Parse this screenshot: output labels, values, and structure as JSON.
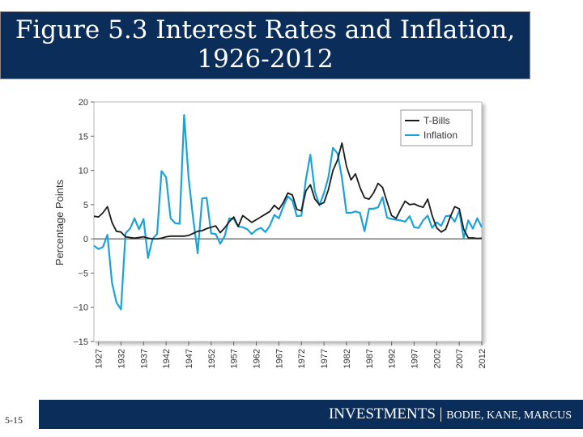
{
  "slide": {
    "title_line1": "Figure 5.3 Interest Rates and Inflation,",
    "title_line2": "1926-2012",
    "slide_number": "5-15",
    "footer_main": "INVESTMENTS | ",
    "footer_authors": "BODIE, KANE, MARCUS"
  },
  "chart_data": {
    "type": "line",
    "title": "Figure 5.3 Interest Rates and Inflation, 1926-2012",
    "xlabel": "",
    "ylabel": "Percentage Points",
    "xlim": [
      1926,
      2012
    ],
    "ylim": [
      -15,
      20
    ],
    "yticks": [
      20,
      15,
      10,
      5,
      0,
      -5,
      -10,
      -15
    ],
    "ytick_labels": [
      "20",
      "15",
      "10",
      "5",
      "0",
      "−5",
      "−10",
      "−15"
    ],
    "xticks": [
      1927,
      1932,
      1937,
      1942,
      1947,
      1952,
      1957,
      1962,
      1967,
      1972,
      1977,
      1982,
      1987,
      1992,
      1997,
      2002,
      2007,
      2012
    ],
    "legend_position": "top-right",
    "grid": false,
    "series": [
      {
        "name": "T-Bills",
        "color": "#1a1a1a",
        "x": [
          1926,
          1927,
          1928,
          1929,
          1930,
          1931,
          1932,
          1933,
          1934,
          1935,
          1936,
          1937,
          1938,
          1939,
          1940,
          1941,
          1942,
          1943,
          1944,
          1945,
          1946,
          1947,
          1948,
          1949,
          1950,
          1951,
          1952,
          1953,
          1954,
          1955,
          1956,
          1957,
          1958,
          1959,
          1960,
          1961,
          1962,
          1963,
          1964,
          1965,
          1966,
          1967,
          1968,
          1969,
          1970,
          1971,
          1972,
          1973,
          1974,
          1975,
          1976,
          1977,
          1978,
          1979,
          1980,
          1981,
          1982,
          1983,
          1984,
          1985,
          1986,
          1987,
          1988,
          1989,
          1990,
          1991,
          1992,
          1993,
          1994,
          1995,
          1996,
          1997,
          1998,
          1999,
          2000,
          2001,
          2002,
          2003,
          2004,
          2005,
          2006,
          2007,
          2008,
          2009,
          2010,
          2011,
          2012
        ],
        "y": [
          3.3,
          3.2,
          3.8,
          4.7,
          2.4,
          1.1,
          1.0,
          0.3,
          0.2,
          0.1,
          0.2,
          0.3,
          0.1,
          0.0,
          0.0,
          0.1,
          0.3,
          0.4,
          0.4,
          0.4,
          0.4,
          0.5,
          0.8,
          1.1,
          1.2,
          1.5,
          1.7,
          1.9,
          0.9,
          1.6,
          2.5,
          3.2,
          1.8,
          3.4,
          2.9,
          2.4,
          2.8,
          3.2,
          3.6,
          4.0,
          4.9,
          4.3,
          5.3,
          6.7,
          6.4,
          4.3,
          4.1,
          7.0,
          7.9,
          5.8,
          5.0,
          5.3,
          7.2,
          10.0,
          11.5,
          14.0,
          10.6,
          8.6,
          9.5,
          7.5,
          6.0,
          5.8,
          6.7,
          8.1,
          7.5,
          5.4,
          3.4,
          3.0,
          4.3,
          5.5,
          5.0,
          5.1,
          4.8,
          4.6,
          5.8,
          3.4,
          1.6,
          1.0,
          1.4,
          3.2,
          4.7,
          4.4,
          1.4,
          0.15,
          0.14,
          0.05,
          0.09
        ]
      },
      {
        "name": "Inflation",
        "color": "#1ba3d8",
        "x": [
          1926,
          1927,
          1928,
          1929,
          1930,
          1931,
          1932,
          1933,
          1934,
          1935,
          1936,
          1937,
          1938,
          1939,
          1940,
          1941,
          1942,
          1943,
          1944,
          1945,
          1946,
          1947,
          1948,
          1949,
          1950,
          1951,
          1952,
          1953,
          1954,
          1955,
          1956,
          1957,
          1958,
          1959,
          1960,
          1961,
          1962,
          1963,
          1964,
          1965,
          1966,
          1967,
          1968,
          1969,
          1970,
          1971,
          1972,
          1973,
          1974,
          1975,
          1976,
          1977,
          1978,
          1979,
          1980,
          1981,
          1982,
          1983,
          1984,
          1985,
          1986,
          1987,
          1988,
          1989,
          1990,
          1991,
          1992,
          1993,
          1994,
          1995,
          1996,
          1997,
          1998,
          1999,
          2000,
          2001,
          2002,
          2003,
          2004,
          2005,
          2006,
          2007,
          2008,
          2009,
          2010,
          2011,
          2012
        ],
        "y": [
          -1.0,
          -1.5,
          -1.2,
          0.6,
          -6.4,
          -9.3,
          -10.3,
          0.8,
          1.5,
          3.0,
          1.4,
          2.9,
          -2.8,
          0.0,
          0.7,
          9.9,
          9.0,
          3.0,
          2.3,
          2.2,
          18.1,
          8.8,
          3.0,
          -2.1,
          5.9,
          6.0,
          0.8,
          0.7,
          -0.7,
          0.4,
          3.0,
          2.9,
          1.8,
          1.7,
          1.4,
          0.7,
          1.3,
          1.6,
          1.0,
          1.9,
          3.5,
          3.0,
          4.7,
          6.2,
          5.6,
          3.3,
          3.4,
          8.7,
          12.3,
          6.9,
          4.9,
          6.7,
          9.0,
          13.3,
          12.5,
          8.9,
          3.8,
          3.8,
          4.0,
          3.8,
          1.1,
          4.4,
          4.4,
          4.6,
          6.1,
          3.1,
          2.9,
          2.8,
          2.7,
          2.5,
          3.3,
          1.7,
          1.6,
          2.7,
          3.4,
          1.6,
          2.4,
          1.9,
          3.3,
          3.4,
          2.5,
          4.1,
          0.1,
          2.7,
          1.5,
          3.0,
          1.7
        ]
      }
    ]
  }
}
